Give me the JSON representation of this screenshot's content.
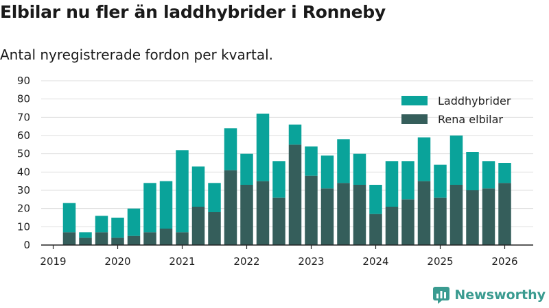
{
  "title": "Elbilar nu fler än laddhybrider i Ronneby",
  "subtitle": "Antal nyregistrerade fordon per kvartal.",
  "brand": "Newsworthy",
  "colors": {
    "laddhybrider": "#0aa39a",
    "rena_elbilar": "#355e5b",
    "grid": "#dddddd",
    "axis": "#222222",
    "brand": "#3a9b90"
  },
  "chart_data": {
    "type": "bar",
    "stacked": true,
    "title": "Elbilar nu fler än laddhybrider i Ronneby",
    "subtitle": "Antal nyregistrerade fordon per kvartal.",
    "xlabel": "",
    "ylabel": "",
    "ylim": [
      0,
      90
    ],
    "yticks": [
      0,
      10,
      20,
      30,
      40,
      50,
      60,
      70,
      80,
      90
    ],
    "x_ticks": [
      "2019",
      "2020",
      "2021",
      "2022",
      "2023",
      "2024",
      "2025",
      "2026"
    ],
    "legend_position": "top-right",
    "categories": [
      "2019 Q2",
      "2019 Q3",
      "2019 Q4",
      "2020 Q1",
      "2020 Q2",
      "2020 Q3",
      "2020 Q4",
      "2021 Q1",
      "2021 Q2",
      "2021 Q3",
      "2021 Q4",
      "2022 Q1",
      "2022 Q2",
      "2022 Q3",
      "2022 Q4",
      "2023 Q1",
      "2023 Q2",
      "2023 Q3",
      "2023 Q4",
      "2024 Q1",
      "2024 Q2",
      "2024 Q3",
      "2024 Q4",
      "2025 Q1",
      "2025 Q2",
      "2025 Q3",
      "2025 Q4",
      "2026 Q1"
    ],
    "series": [
      {
        "name": "Rena elbilar",
        "color": "#355e5b",
        "values": [
          7,
          4,
          7,
          4,
          5,
          7,
          9,
          7,
          21,
          18,
          41,
          33,
          35,
          26,
          55,
          38,
          31,
          34,
          33,
          17,
          21,
          25,
          35,
          26,
          33,
          30,
          31,
          34
        ]
      },
      {
        "name": "Laddhybrider",
        "color": "#0aa39a",
        "values": [
          16,
          3,
          9,
          11,
          15,
          27,
          26,
          45,
          22,
          16,
          23,
          17,
          37,
          20,
          11,
          16,
          18,
          24,
          17,
          16,
          25,
          21,
          24,
          18,
          27,
          21,
          15,
          11
        ]
      }
    ],
    "legend": [
      "Laddhybrider",
      "Rena elbilar"
    ]
  }
}
